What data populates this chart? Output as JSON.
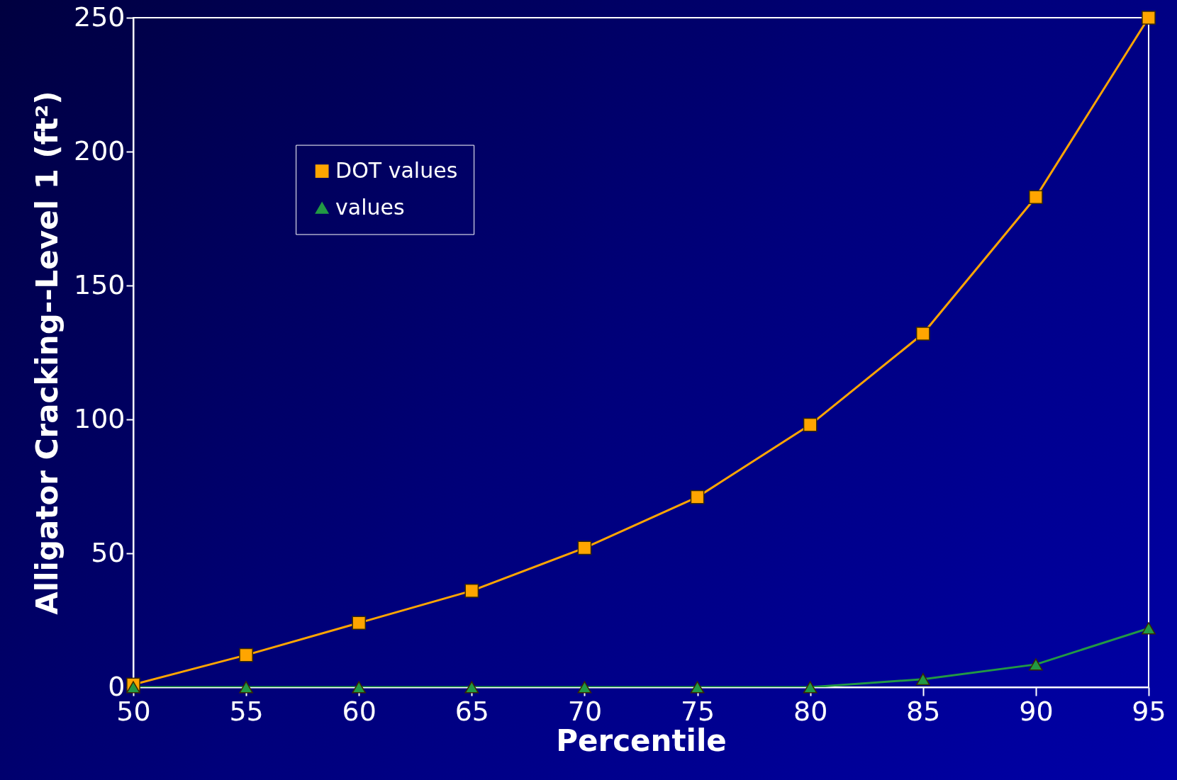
{
  "chart_data": {
    "type": "line",
    "xlabel": "Percentile",
    "ylabel": "Alligator Cracking--Level 1 (ft²)",
    "x": [
      50,
      55,
      60,
      65,
      70,
      75,
      80,
      85,
      90,
      95
    ],
    "xlim": [
      50,
      95
    ],
    "xticks": [
      50,
      55,
      60,
      65,
      70,
      75,
      80,
      85,
      90,
      95
    ],
    "ylim": [
      0,
      250
    ],
    "yticks": [
      0,
      50,
      100,
      150,
      200,
      250
    ],
    "legend": "top left",
    "series": [
      {
        "name": "DOT values",
        "color": "#ffa500",
        "marker": "square",
        "values": [
          1,
          12,
          24,
          36,
          52,
          71,
          98,
          132,
          183,
          250
        ]
      },
      {
        "name": "values",
        "color": "#229944",
        "marker": "triangle",
        "values": [
          0,
          0,
          0,
          0,
          0,
          0,
          0,
          3,
          8.5,
          22
        ]
      }
    ]
  }
}
